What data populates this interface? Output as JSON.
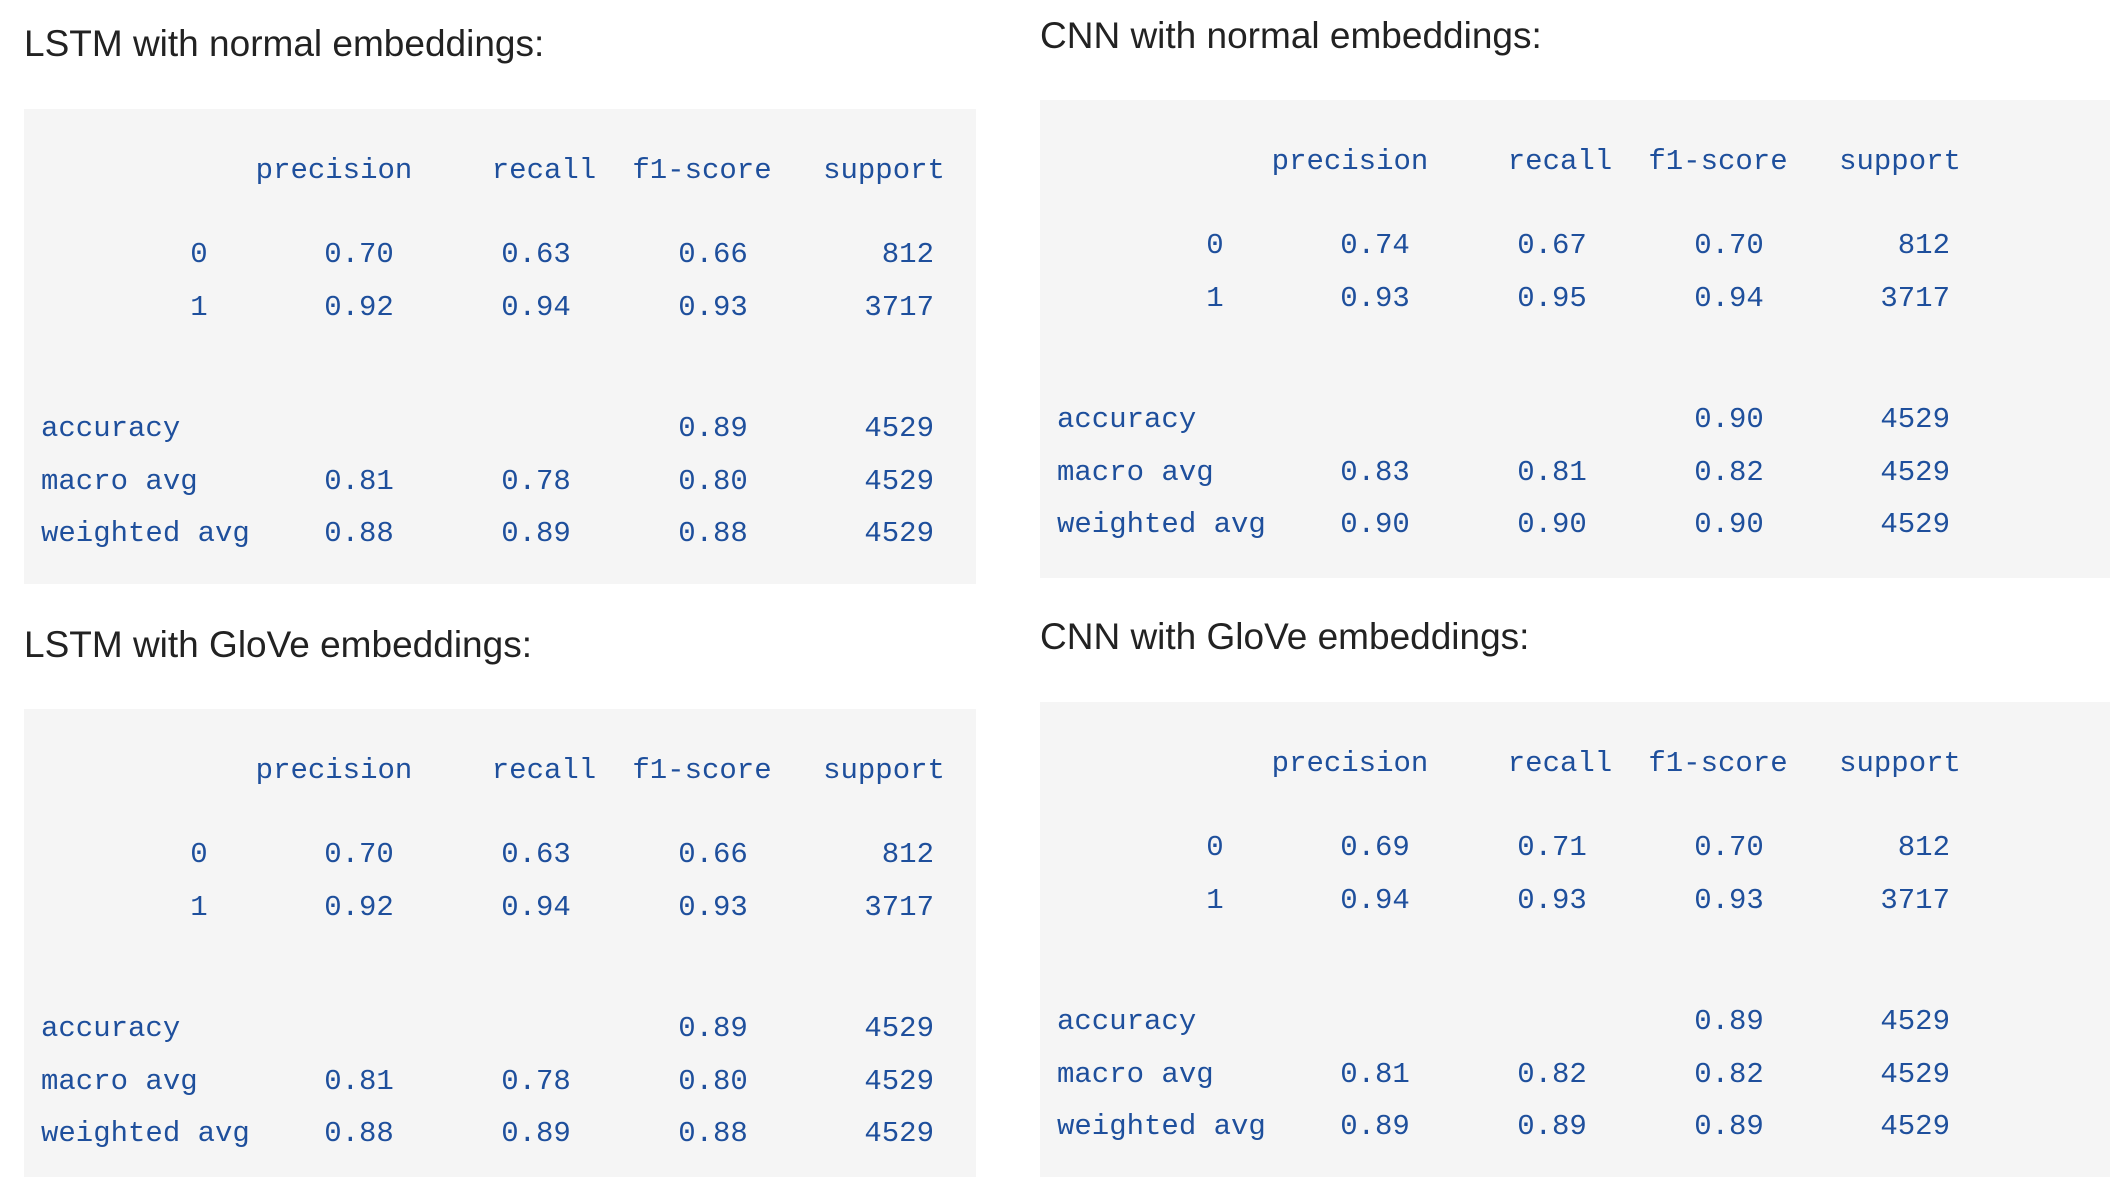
{
  "panels": [
    {
      "title": "LSTM with normal embeddings:",
      "headers": [
        "precision",
        "recall",
        "f1-score",
        "support"
      ],
      "rows": [
        {
          "label": "0",
          "precision": "0.70",
          "recall": "0.63",
          "f1": "0.66",
          "support": "812"
        },
        {
          "label": "1",
          "precision": "0.92",
          "recall": "0.94",
          "f1": "0.93",
          "support": "3717"
        },
        {
          "label": "accuracy",
          "precision": "",
          "recall": "",
          "f1": "0.89",
          "support": "4529"
        },
        {
          "label": "macro avg",
          "precision": "0.81",
          "recall": "0.78",
          "f1": "0.80",
          "support": "4529"
        },
        {
          "label": "weighted avg",
          "precision": "0.88",
          "recall": "0.89",
          "f1": "0.88",
          "support": "4529"
        }
      ]
    },
    {
      "title": "CNN with normal embeddings:",
      "headers": [
        "precision",
        "recall",
        "f1-score",
        "support"
      ],
      "rows": [
        {
          "label": "0",
          "precision": "0.74",
          "recall": "0.67",
          "f1": "0.70",
          "support": "812"
        },
        {
          "label": "1",
          "precision": "0.93",
          "recall": "0.95",
          "f1": "0.94",
          "support": "3717"
        },
        {
          "label": "accuracy",
          "precision": "",
          "recall": "",
          "f1": "0.90",
          "support": "4529"
        },
        {
          "label": "macro avg",
          "precision": "0.83",
          "recall": "0.81",
          "f1": "0.82",
          "support": "4529"
        },
        {
          "label": "weighted avg",
          "precision": "0.90",
          "recall": "0.90",
          "f1": "0.90",
          "support": "4529"
        }
      ]
    },
    {
      "title": "LSTM with GloVe embeddings:",
      "headers": [
        "precision",
        "recall",
        "f1-score",
        "support"
      ],
      "rows": [
        {
          "label": "0",
          "precision": "0.70",
          "recall": "0.63",
          "f1": "0.66",
          "support": "812"
        },
        {
          "label": "1",
          "precision": "0.92",
          "recall": "0.94",
          "f1": "0.93",
          "support": "3717"
        },
        {
          "label": "accuracy",
          "precision": "",
          "recall": "",
          "f1": "0.89",
          "support": "4529"
        },
        {
          "label": "macro avg",
          "precision": "0.81",
          "recall": "0.78",
          "f1": "0.80",
          "support": "4529"
        },
        {
          "label": "weighted avg",
          "precision": "0.88",
          "recall": "0.89",
          "f1": "0.88",
          "support": "4529"
        }
      ]
    },
    {
      "title": "CNN with GloVe embeddings:",
      "headers": [
        "precision",
        "recall",
        "f1-score",
        "support"
      ],
      "rows": [
        {
          "label": "0",
          "precision": "0.69",
          "recall": "0.71",
          "f1": "0.70",
          "support": "812"
        },
        {
          "label": "1",
          "precision": "0.94",
          "recall": "0.93",
          "f1": "0.93",
          "support": "3717"
        },
        {
          "label": "accuracy",
          "precision": "",
          "recall": "",
          "f1": "0.89",
          "support": "4529"
        },
        {
          "label": "macro avg",
          "precision": "0.81",
          "recall": "0.82",
          "f1": "0.82",
          "support": "4529"
        },
        {
          "label": "weighted avg",
          "precision": "0.89",
          "recall": "0.89",
          "f1": "0.89",
          "support": "4529"
        }
      ]
    }
  ]
}
